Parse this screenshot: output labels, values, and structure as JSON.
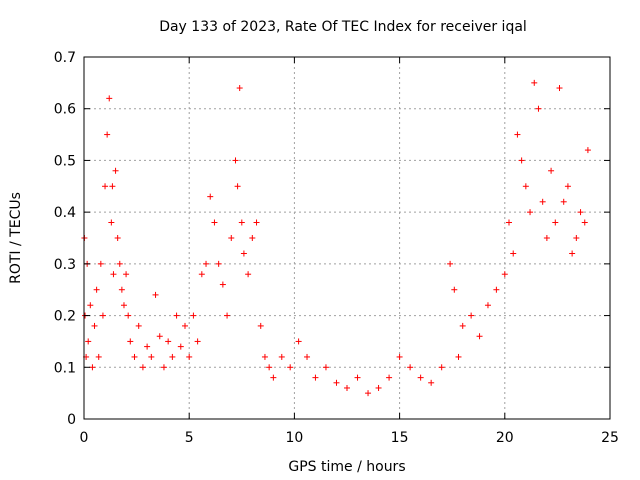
{
  "chart_data": {
    "type": "scatter",
    "title": "Day 133 of 2023, Rate Of TEC Index for receiver iqal",
    "xlabel": "GPS time / hours",
    "ylabel": "ROTI / TECUs",
    "xlim": [
      0,
      25
    ],
    "ylim": [
      0,
      0.7
    ],
    "xticks": [
      0,
      5,
      10,
      15,
      20,
      25
    ],
    "yticks": [
      0,
      0.1,
      0.2,
      0.3,
      0.4,
      0.5,
      0.6,
      0.7
    ],
    "grid": true,
    "marker": "+",
    "color": "#ff0000",
    "series": [
      {
        "x": [
          0.02,
          0.05,
          0.1,
          0.15,
          0.2,
          0.3,
          0.4,
          0.5,
          0.6,
          0.7,
          0.8,
          0.9,
          1.0,
          1.1,
          1.2,
          1.3,
          1.35,
          1.4,
          1.5,
          1.6,
          1.7,
          1.8,
          1.9,
          2.0,
          2.1,
          2.2,
          2.4,
          2.6,
          2.8,
          3.0,
          3.2,
          3.4,
          3.6,
          3.8,
          4.0,
          4.2,
          4.4,
          4.6,
          4.8,
          5.0,
          5.2,
          5.4,
          5.6,
          5.8,
          6.0,
          6.2,
          6.4,
          6.6,
          6.8,
          7.0,
          7.2,
          7.3,
          7.4,
          7.5,
          7.6,
          7.8,
          8.0,
          8.2,
          8.4,
          8.6,
          8.8,
          9.0,
          9.4,
          9.8,
          10.2,
          10.6,
          11.0,
          11.5,
          12.0,
          12.5,
          13.0,
          13.5,
          14.0,
          14.5,
          15.0,
          15.5,
          16.0,
          16.5,
          17.0,
          17.4,
          17.6,
          17.8,
          18.0,
          18.4,
          18.8,
          19.2,
          19.6,
          20.0,
          20.2,
          20.4,
          20.6,
          20.8,
          21.0,
          21.2,
          21.4,
          21.6,
          21.8,
          22.0,
          22.2,
          22.4,
          22.6,
          22.8,
          23.0,
          23.2,
          23.4,
          23.6,
          23.8,
          23.95
        ],
        "y": [
          0.35,
          0.2,
          0.12,
          0.3,
          0.15,
          0.22,
          0.1,
          0.18,
          0.25,
          0.12,
          0.3,
          0.2,
          0.45,
          0.55,
          0.62,
          0.38,
          0.45,
          0.28,
          0.48,
          0.35,
          0.3,
          0.25,
          0.22,
          0.28,
          0.2,
          0.15,
          0.12,
          0.18,
          0.1,
          0.14,
          0.12,
          0.24,
          0.16,
          0.1,
          0.15,
          0.12,
          0.2,
          0.14,
          0.18,
          0.12,
          0.2,
          0.15,
          0.28,
          0.3,
          0.43,
          0.38,
          0.3,
          0.26,
          0.2,
          0.35,
          0.5,
          0.45,
          0.64,
          0.38,
          0.32,
          0.28,
          0.35,
          0.38,
          0.18,
          0.12,
          0.1,
          0.08,
          0.12,
          0.1,
          0.15,
          0.12,
          0.08,
          0.1,
          0.07,
          0.06,
          0.08,
          0.05,
          0.06,
          0.08,
          0.12,
          0.1,
          0.08,
          0.07,
          0.1,
          0.3,
          0.25,
          0.12,
          0.18,
          0.2,
          0.16,
          0.22,
          0.25,
          0.28,
          0.38,
          0.32,
          0.55,
          0.5,
          0.45,
          0.4,
          0.65,
          0.6,
          0.42,
          0.35,
          0.48,
          0.38,
          0.64,
          0.42,
          0.45,
          0.32,
          0.35,
          0.4,
          0.38,
          0.52
        ]
      }
    ]
  }
}
